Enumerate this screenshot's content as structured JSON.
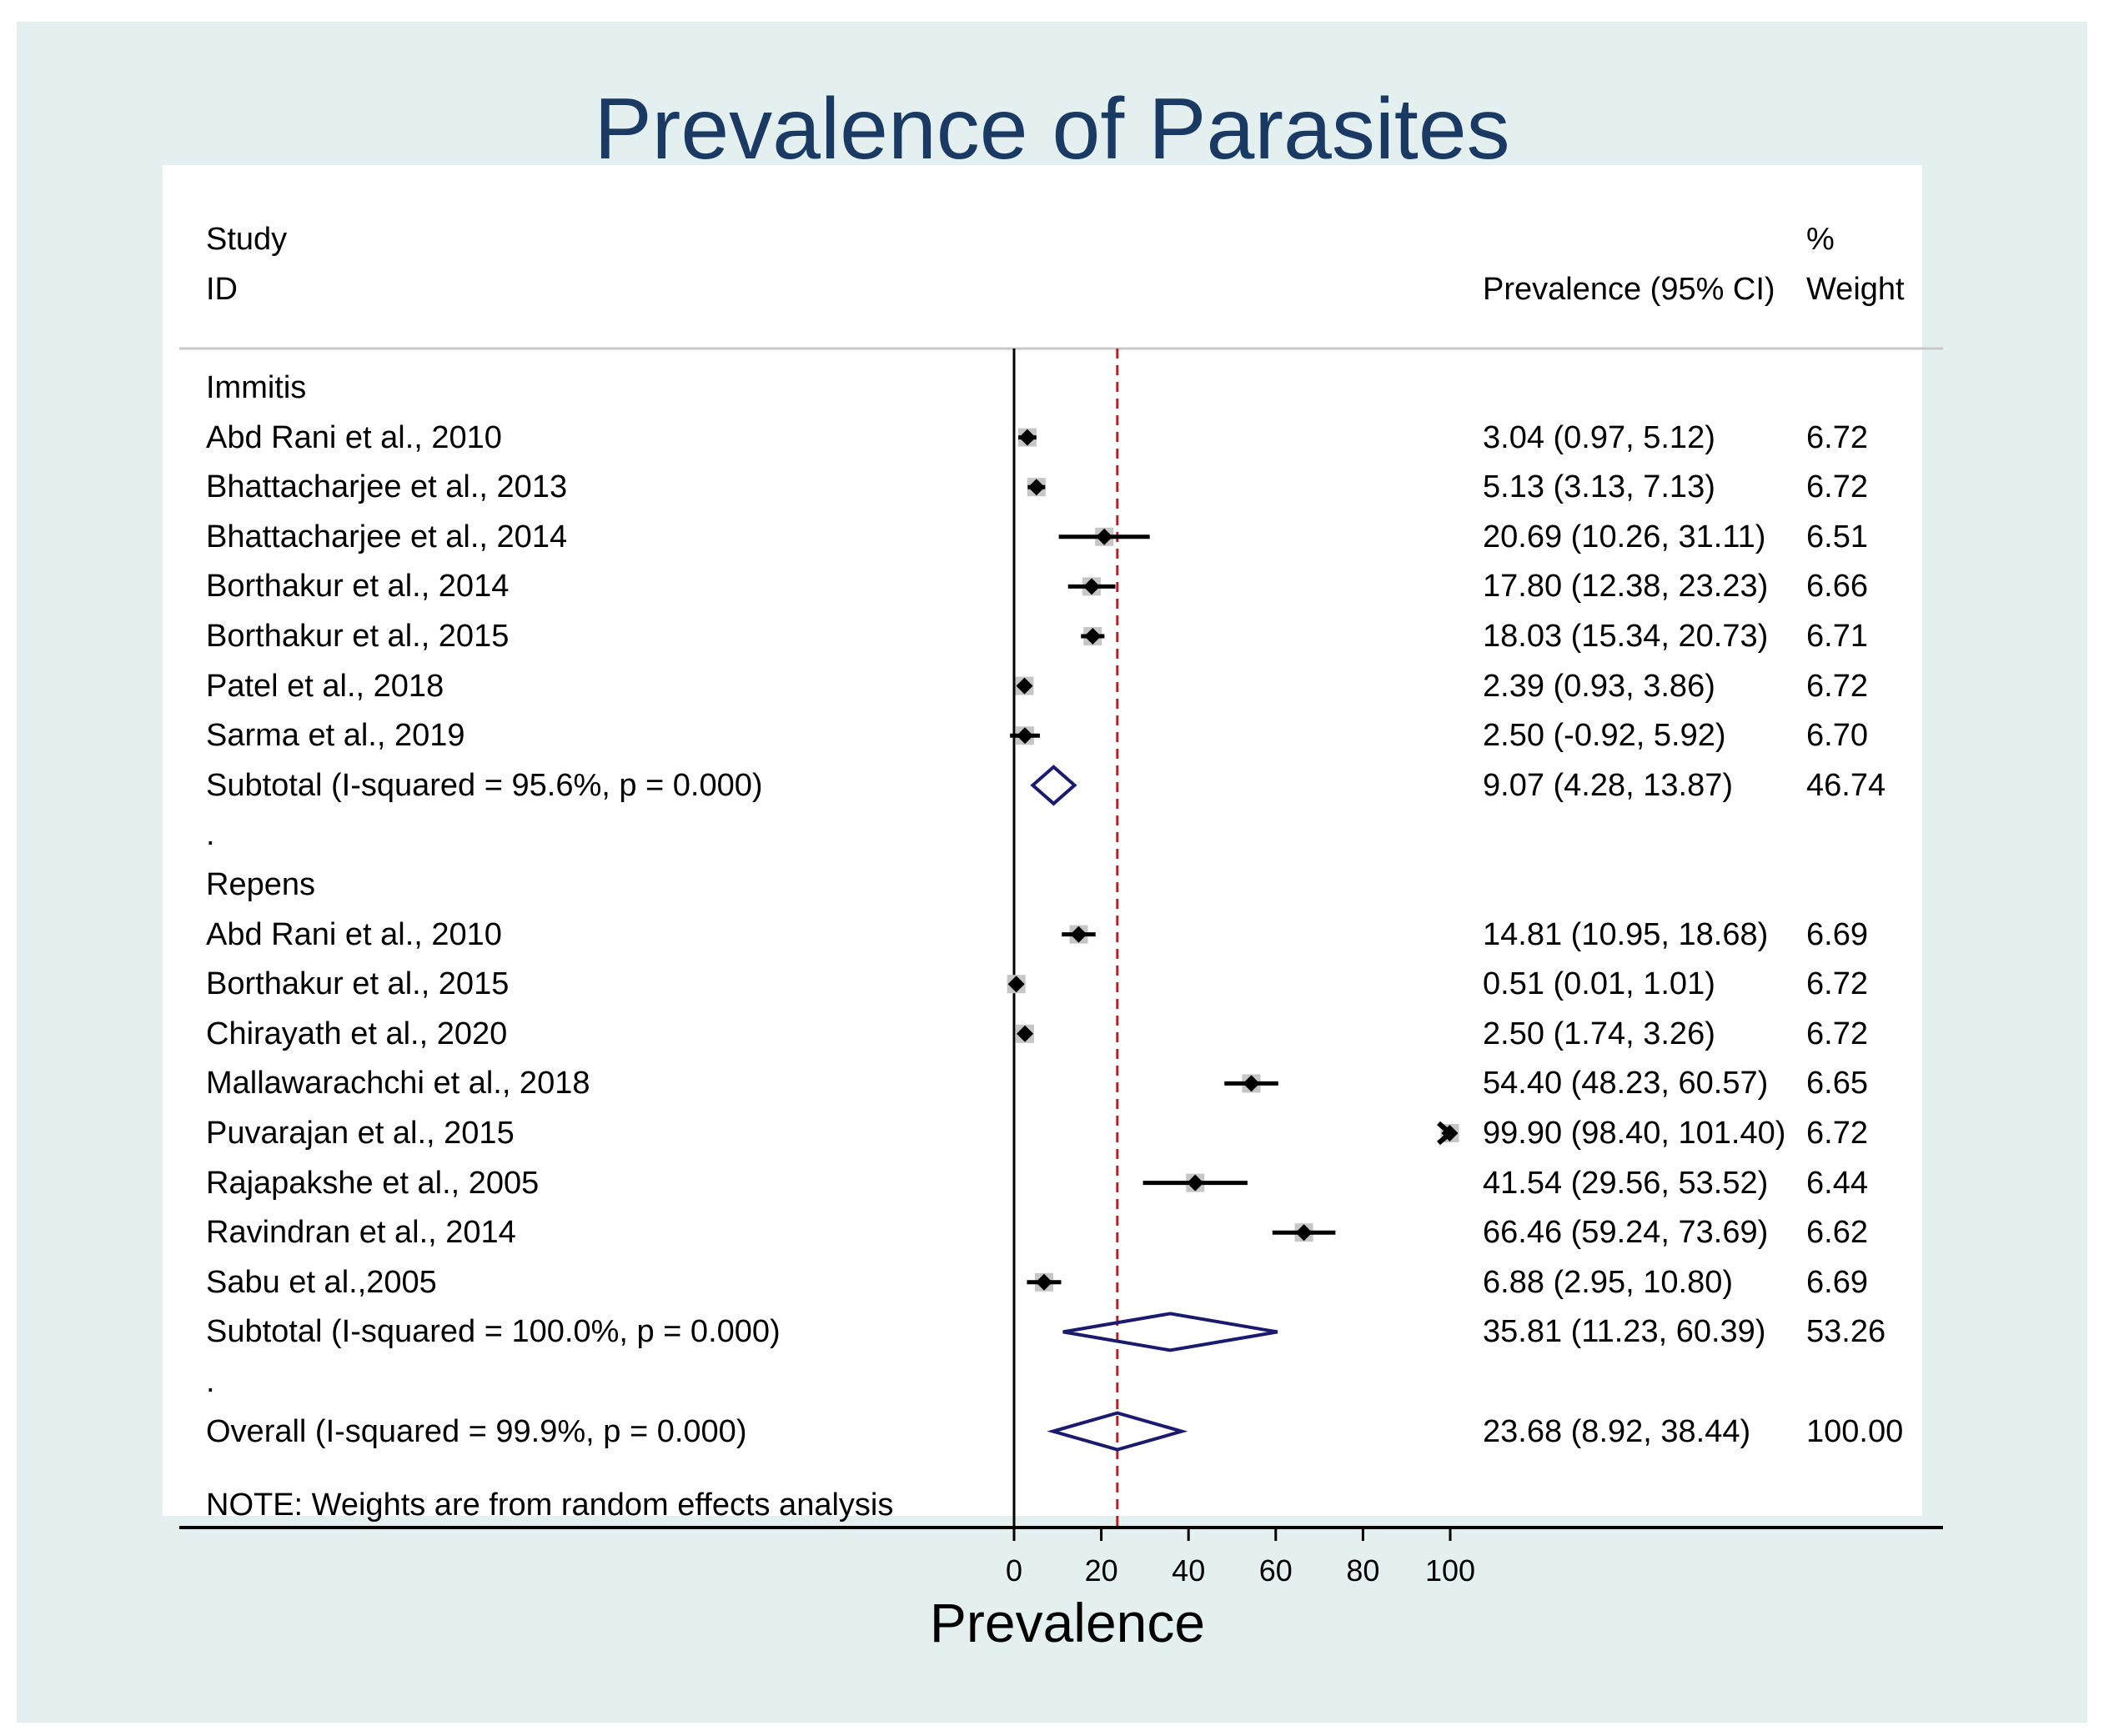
{
  "title": "Prevalence of Parasites",
  "header": {
    "study_line1": "Study",
    "study_line2": "ID",
    "estimate_label": "Prevalence (95% CI)",
    "weight_line1": "%",
    "weight_line2": "Weight"
  },
  "note": "NOTE: Weights are from random effects analysis",
  "colors": {
    "title": "#1a3a64",
    "diamond": "#1a1a6e",
    "null_line": "#b22222",
    "outer_bg": "#e4eff0"
  },
  "chart_data": {
    "type": "forest",
    "title": "Prevalence of Parasites",
    "xlabel": "Prevalence",
    "xlim": [
      0,
      100
    ],
    "xticks": [
      "0",
      "20",
      "40",
      "60",
      "80",
      "100"
    ],
    "overall_line": 23.68,
    "rows": [
      {
        "kind": "group",
        "label": "Immitis"
      },
      {
        "kind": "study",
        "label": "Abd Rani et al., 2010",
        "est": 3.04,
        "lo": 0.97,
        "hi": 5.12,
        "ci": "3.04 (0.97, 5.12)",
        "weight": "6.72"
      },
      {
        "kind": "study",
        "label": "Bhattacharjee et al., 2013",
        "est": 5.13,
        "lo": 3.13,
        "hi": 7.13,
        "ci": "5.13 (3.13, 7.13)",
        "weight": "6.72"
      },
      {
        "kind": "study",
        "label": "Bhattacharjee et al., 2014",
        "est": 20.69,
        "lo": 10.26,
        "hi": 31.11,
        "ci": "20.69 (10.26, 31.11)",
        "weight": "6.51"
      },
      {
        "kind": "study",
        "label": "Borthakur et al., 2014",
        "est": 17.8,
        "lo": 12.38,
        "hi": 23.23,
        "ci": "17.80 (12.38, 23.23)",
        "weight": "6.66"
      },
      {
        "kind": "study",
        "label": "Borthakur et al., 2015",
        "est": 18.03,
        "lo": 15.34,
        "hi": 20.73,
        "ci": "18.03 (15.34, 20.73)",
        "weight": "6.71"
      },
      {
        "kind": "study",
        "label": "Patel et al., 2018",
        "est": 2.39,
        "lo": 0.93,
        "hi": 3.86,
        "ci": "2.39 (0.93, 3.86)",
        "weight": "6.72"
      },
      {
        "kind": "study",
        "label": "Sarma et al., 2019",
        "est": 2.5,
        "lo": -0.92,
        "hi": 5.92,
        "ci": "2.50 (-0.92, 5.92)",
        "weight": "6.70"
      },
      {
        "kind": "subtotal",
        "label": "Subtotal  (I-squared = 95.6%, p = 0.000)",
        "est": 9.07,
        "lo": 4.28,
        "hi": 13.87,
        "ci": "9.07 (4.28, 13.87)",
        "weight": "46.74"
      },
      {
        "kind": "spacer",
        "label": "."
      },
      {
        "kind": "group",
        "label": "Repens"
      },
      {
        "kind": "study",
        "label": "Abd Rani et al., 2010",
        "est": 14.81,
        "lo": 10.95,
        "hi": 18.68,
        "ci": "14.81 (10.95, 18.68)",
        "weight": "6.69"
      },
      {
        "kind": "study",
        "label": "Borthakur et al., 2015",
        "est": 0.51,
        "lo": 0.01,
        "hi": 1.01,
        "ci": "0.51 (0.01, 1.01)",
        "weight": "6.72"
      },
      {
        "kind": "study",
        "label": "Chirayath et al., 2020",
        "est": 2.5,
        "lo": 1.74,
        "hi": 3.26,
        "ci": "2.50 (1.74, 3.26)",
        "weight": "6.72"
      },
      {
        "kind": "study",
        "label": "Mallawarachchi et al., 2018",
        "est": 54.4,
        "lo": 48.23,
        "hi": 60.57,
        "ci": "54.40 (48.23, 60.57)",
        "weight": "6.65"
      },
      {
        "kind": "study",
        "label": "Puvarajan et al., 2015",
        "est": 99.9,
        "lo": 98.4,
        "hi": 101.4,
        "ci": "99.90 (98.40, 101.40)",
        "weight": "6.72"
      },
      {
        "kind": "study",
        "label": "Rajapakshe et al., 2005",
        "est": 41.54,
        "lo": 29.56,
        "hi": 53.52,
        "ci": "41.54 (29.56, 53.52)",
        "weight": "6.44"
      },
      {
        "kind": "study",
        "label": "Ravindran et al., 2014",
        "est": 66.46,
        "lo": 59.24,
        "hi": 73.69,
        "ci": "66.46 (59.24, 73.69)",
        "weight": "6.62"
      },
      {
        "kind": "study",
        "label": "Sabu et al.,2005",
        "est": 6.88,
        "lo": 2.95,
        "hi": 10.8,
        "ci": "6.88 (2.95, 10.80)",
        "weight": "6.69"
      },
      {
        "kind": "subtotal",
        "label": "Subtotal  (I-squared = 100.0%, p = 0.000)",
        "est": 35.81,
        "lo": 11.23,
        "hi": 60.39,
        "ci": "35.81 (11.23, 60.39)",
        "weight": "53.26"
      },
      {
        "kind": "spacer",
        "label": "."
      },
      {
        "kind": "overall",
        "label": "Overall  (I-squared = 99.9%, p = 0.000)",
        "est": 23.68,
        "lo": 8.92,
        "hi": 38.44,
        "ci": "23.68 (8.92, 38.44)",
        "weight": "100.00"
      }
    ]
  }
}
